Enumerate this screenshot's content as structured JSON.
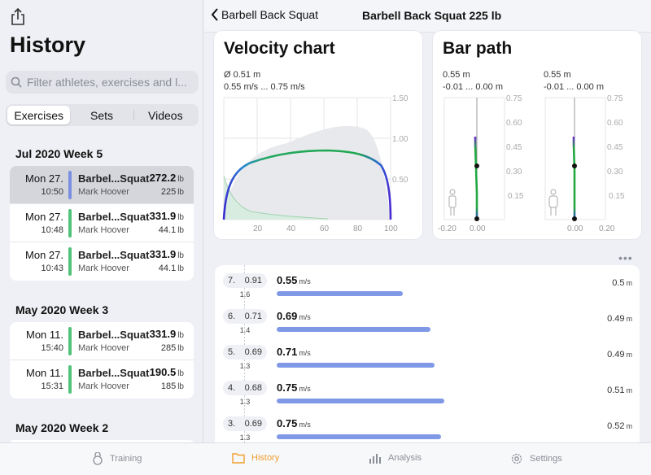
{
  "sidebar": {
    "title": "History",
    "search_placeholder": "Filter athletes, exercises and l...",
    "segments": [
      "Exercises",
      "Sets",
      "Videos"
    ],
    "groups": [
      {
        "week": "Jul 2020 Week 5",
        "rows": [
          {
            "day": "Mon 27.",
            "time": "10:50",
            "exercise": "Barbel...Squat",
            "athlete": "Mark Hoover",
            "w1": "272.2",
            "w2": "225",
            "unit": "lb",
            "color": "#7b8fe0",
            "selected": true
          },
          {
            "day": "Mon 27.",
            "time": "10:48",
            "exercise": "Barbel...Squat",
            "athlete": "Mark Hoover",
            "w1": "331.9",
            "w2": "44.1",
            "unit": "lb",
            "color": "#52c27a"
          },
          {
            "day": "Mon 27.",
            "time": "10:43",
            "exercise": "Barbel...Squat",
            "athlete": "Mark Hoover",
            "w1": "331.9",
            "w2": "44.1",
            "unit": "lb",
            "color": "#52c27a"
          }
        ]
      },
      {
        "week": "May 2020 Week 3",
        "rows": [
          {
            "day": "Mon 11.",
            "time": "15:40",
            "exercise": "Barbel...Squat",
            "athlete": "Mark Hoover",
            "w1": "331.9",
            "w2": "285",
            "unit": "lb",
            "color": "#52c27a"
          },
          {
            "day": "Mon 11.",
            "time": "15:31",
            "exercise": "Barbel...Squat",
            "athlete": "Mark Hoover",
            "w1": "190.5",
            "w2": "185",
            "unit": "lb",
            "color": "#52c27a"
          }
        ]
      },
      {
        "week": "May 2020 Week 2",
        "rows": []
      }
    ]
  },
  "header": {
    "back_label": "Barbell Back Squat",
    "title": "Barbell Back Squat 225 lb"
  },
  "velocity_chart": {
    "title": "Velocity chart",
    "stat1": "Ø 0.51 m",
    "stat2": "0.55 m/s ... 0.75 m/s",
    "x_ticks": [
      "20",
      "40",
      "60",
      "80",
      "100"
    ],
    "y_ticks": [
      "1.50",
      "1.00",
      "0.50"
    ]
  },
  "bar_path": {
    "title": "Bar path",
    "left": {
      "stat1": "0.55 m",
      "stat2": "-0.01 ... 0.00 m",
      "x_ticks": [
        "-0.20",
        "0.00"
      ]
    },
    "right": {
      "stat1": "0.55 m",
      "stat2": "-0.01 ... 0.00 m",
      "x_ticks": [
        "0.00",
        "0.20"
      ]
    },
    "y_ticks": [
      "0.75",
      "0.60",
      "0.45",
      "0.30",
      "0.15"
    ]
  },
  "more_label": "•••",
  "reps": [
    {
      "num": "7.",
      "val": "0.91",
      "sub": "1.6",
      "vel": "0.55",
      "vel_unit": "m/s",
      "fraction": 0.36,
      "dist": "0.5",
      "dist_unit": "m"
    },
    {
      "num": "6.",
      "val": "0.71",
      "sub": "1.4",
      "vel": "0.69",
      "vel_unit": "m/s",
      "fraction": 0.44,
      "dist": "0.49",
      "dist_unit": "m"
    },
    {
      "num": "5.",
      "val": "0.69",
      "sub": "1.3",
      "vel": "0.71",
      "vel_unit": "m/s",
      "fraction": 0.45,
      "dist": "0.49",
      "dist_unit": "m"
    },
    {
      "num": "4.",
      "val": "0.68",
      "sub": "1.3",
      "vel": "0.75",
      "vel_unit": "m/s",
      "fraction": 0.48,
      "dist": "0.51",
      "dist_unit": "m"
    },
    {
      "num": "3.",
      "val": "0.69",
      "sub": "1.3",
      "vel": "0.75",
      "vel_unit": "m/s",
      "fraction": 0.47,
      "dist": "0.52",
      "dist_unit": "m"
    }
  ],
  "tabbar": {
    "tabs": [
      {
        "label": "Training",
        "icon": "kettlebell-icon"
      },
      {
        "label": "History",
        "icon": "folder-icon",
        "active": true
      },
      {
        "label": "Analysis",
        "icon": "bar-chart-icon"
      },
      {
        "label": "Settings",
        "icon": "gear-icon"
      }
    ]
  },
  "colors": {
    "accent": "#f0a030",
    "bar_blue": "#8099e6",
    "curve_green": "#2aa84a",
    "curve_blue": "#2a3bd0"
  }
}
